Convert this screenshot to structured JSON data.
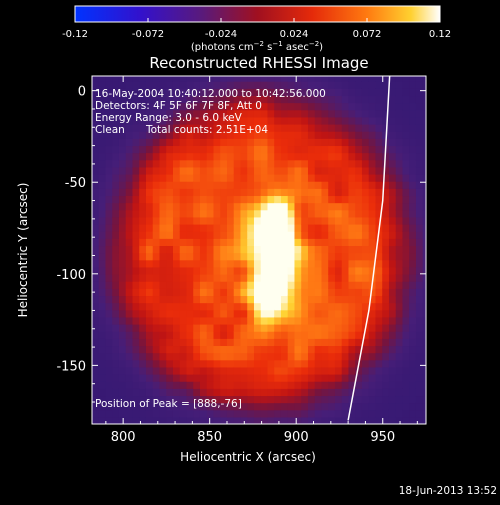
{
  "chart_data": {
    "type": "heatmap",
    "title": "Reconstructed RHESSI Image",
    "xlabel": "Heliocentric X (arcsec)",
    "ylabel": "Heliocentric Y (arcsec)",
    "xlim": [
      782,
      975
    ],
    "ylim": [
      -182,
      8
    ],
    "x_ticks": [
      800,
      850,
      900,
      950
    ],
    "y_ticks": [
      0,
      -50,
      -100,
      -150
    ],
    "colorbar": {
      "range": [
        -0.12,
        0.12
      ],
      "ticks": [
        "-0.12",
        "-0.072",
        "-0.024",
        "0.024",
        "0.072",
        "0.12"
      ],
      "colormap": "hot (blue → purple → red → yellow → white)"
    },
    "annotations": [
      "16-May-2004 10:40:12.000 to 10:42:56.000",
      "Detectors: 4F 5F 6F 7F 8F, Att 0",
      "Energy Range: 3.0 - 6.0 keV",
      "Clean",
      "Total counts: 2.51E+04"
    ],
    "peak_text": "Position of Peak = [888,-76]",
    "sources": [
      {
        "x": 888,
        "y": -76,
        "relative_intensity": 1.0
      },
      {
        "x": 886,
        "y": -107,
        "relative_intensity": 0.82
      }
    ],
    "limb_x_at_y": [
      [
        930,
        -180
      ],
      [
        942,
        -120
      ],
      [
        950,
        -60
      ],
      [
        954,
        8
      ]
    ],
    "timestamp": "18-Jun-2013 13:52"
  }
}
